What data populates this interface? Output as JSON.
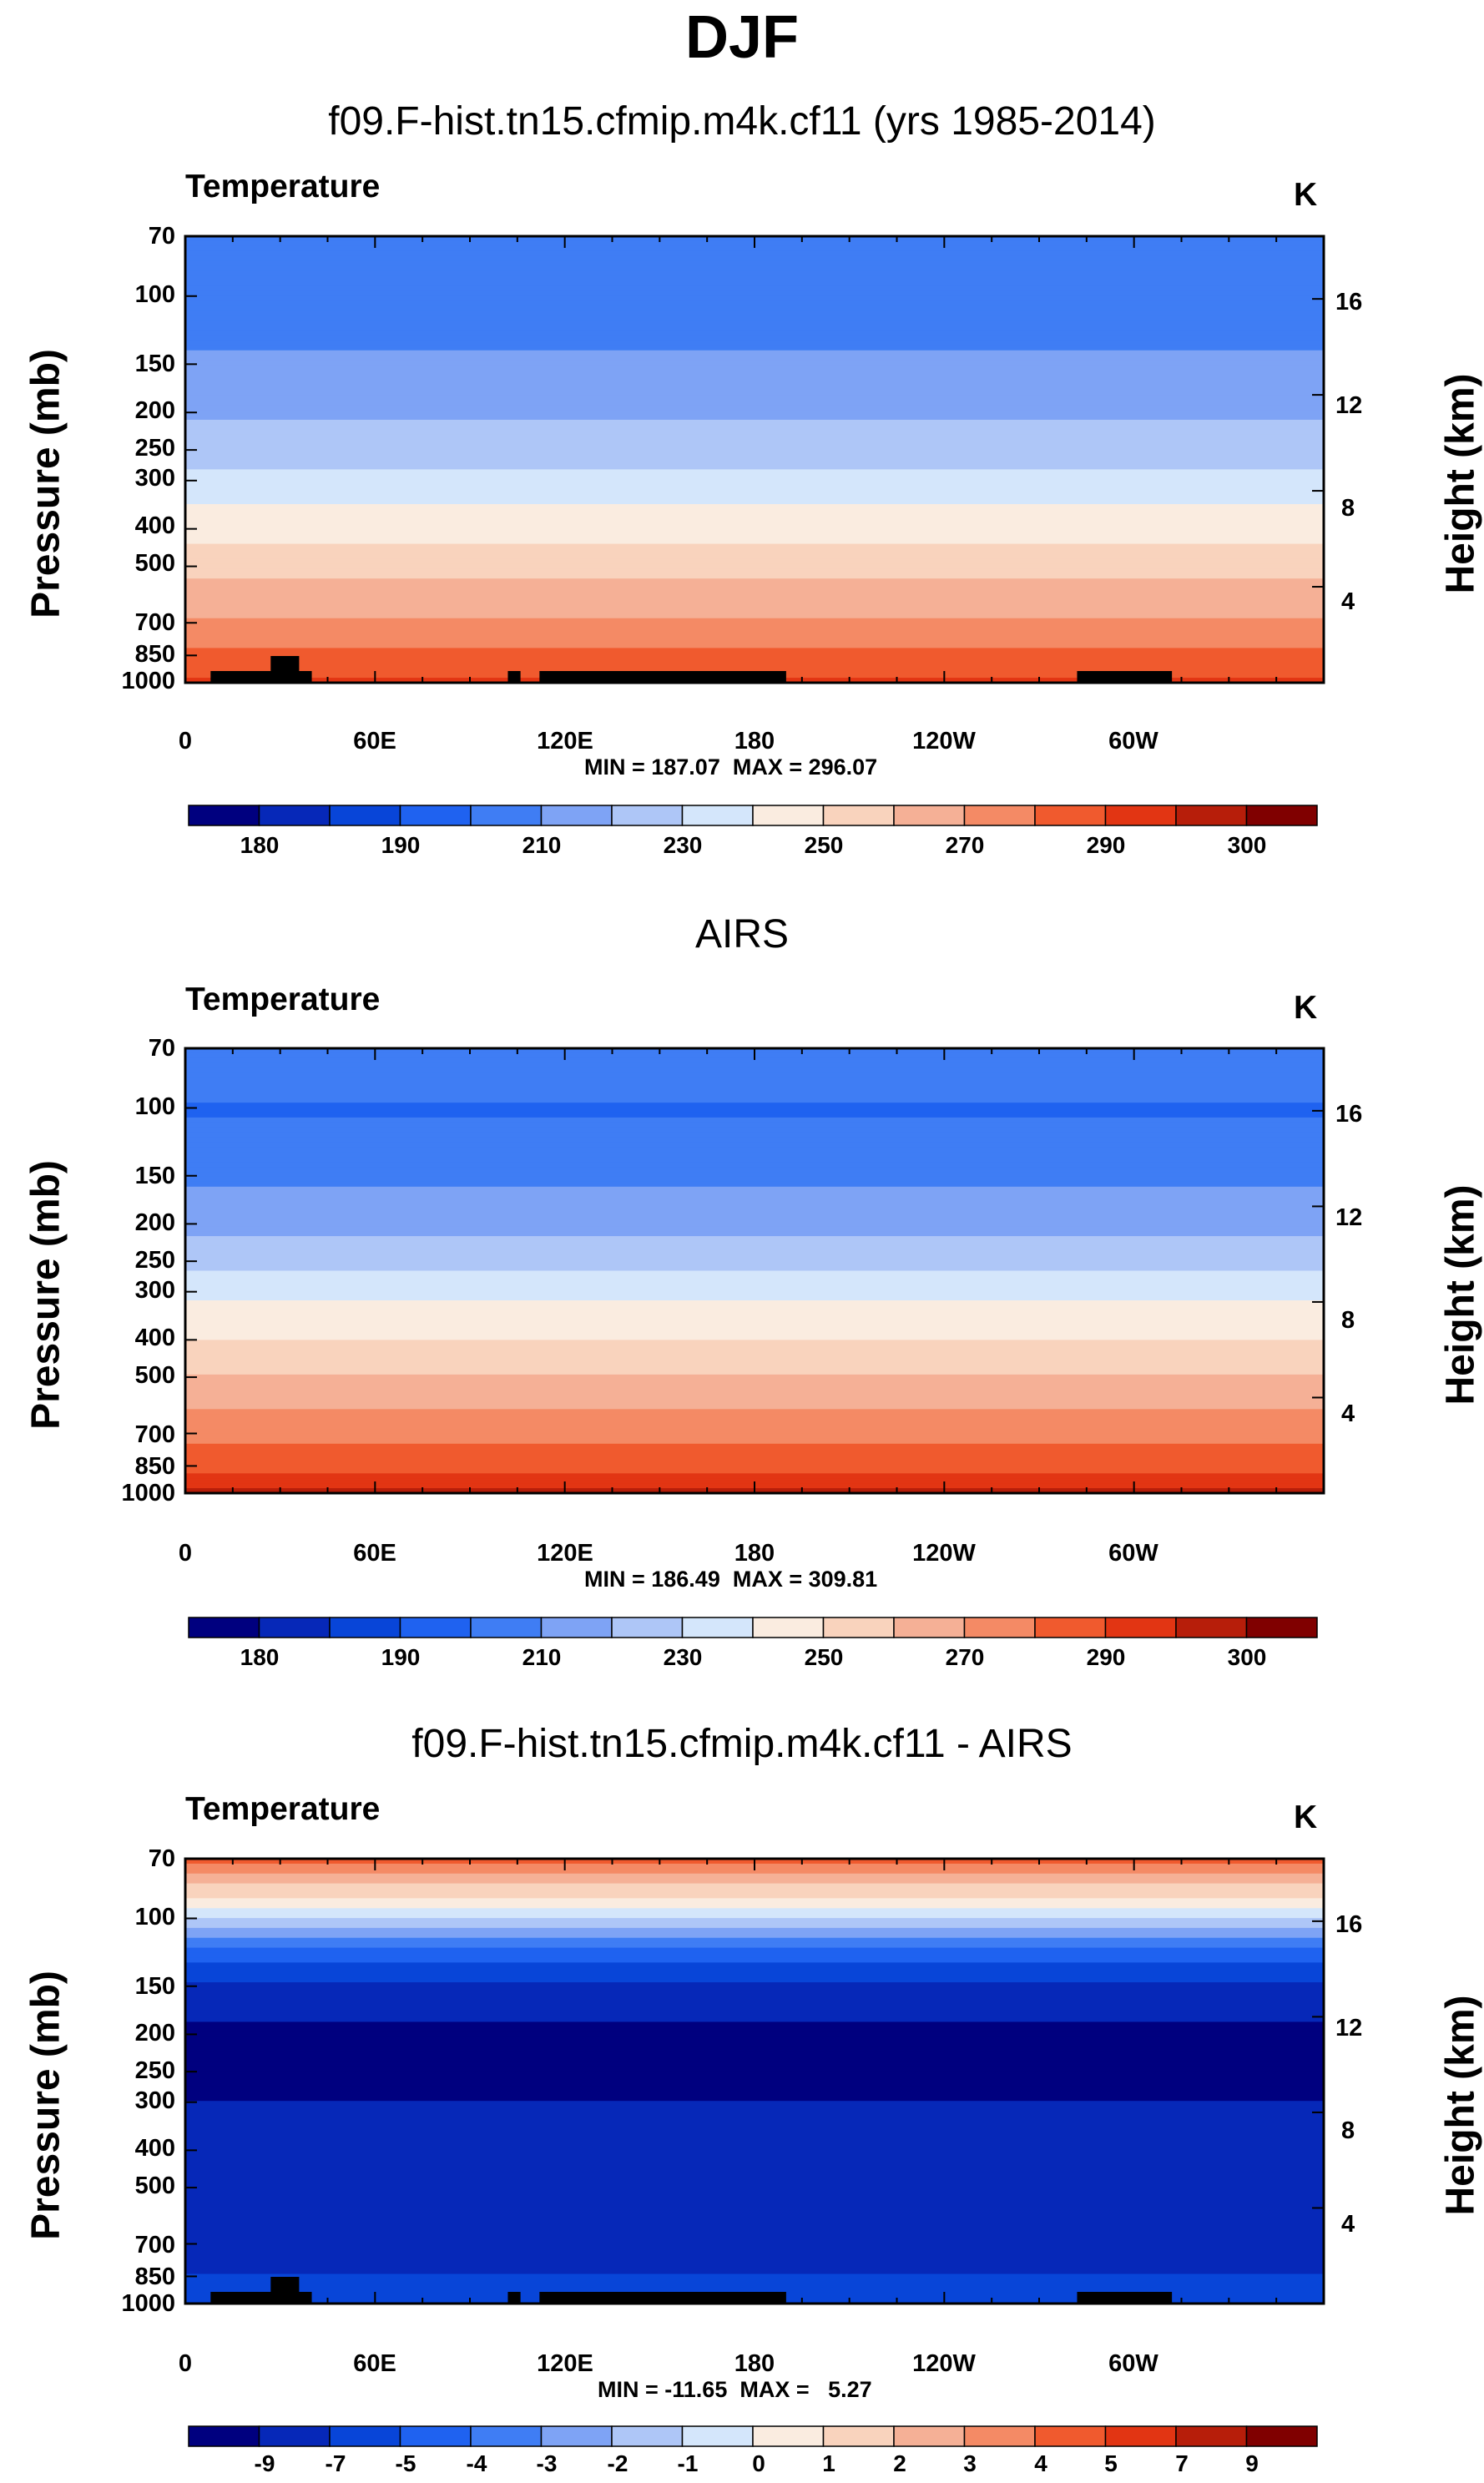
{
  "title": "DJF",
  "colors": {
    "abs_scale": [
      "#00007f",
      "#0628b8",
      "#0845d8",
      "#1f62f0",
      "#3f7df4",
      "#7ea3f5",
      "#aec6f7",
      "#d4e6fb",
      "#faece0",
      "#f9d3bd",
      "#f5b096",
      "#f48a65",
      "#f05a2e",
      "#e23513",
      "#b71e0a",
      "#800000"
    ],
    "diff_scale": [
      "#00007f",
      "#0628b8",
      "#0845d8",
      "#1f62f0",
      "#3f7df4",
      "#7ea3f5",
      "#aec6f7",
      "#d4e6fb",
      "#faece0",
      "#f9d3bd",
      "#f5b096",
      "#f48a65",
      "#f05a2e",
      "#e23513",
      "#b71e0a",
      "#800000"
    ],
    "topography": "#000000"
  },
  "panels": [
    {
      "title": "f09.F-hist.tn15.cfmip.m4k.cf11 (yrs 1985-2014)",
      "variable": "Temperature",
      "units": "K",
      "min_max": "MIN = 187.07  MAX = 296.07",
      "colorbar_labels": [
        "180",
        "190",
        "210",
        "230",
        "250",
        "270",
        "290",
        "300"
      ]
    },
    {
      "title": "AIRS",
      "variable": "Temperature",
      "units": "K",
      "min_max": "MIN = 186.49  MAX = 309.81",
      "colorbar_labels": [
        "180",
        "190",
        "210",
        "230",
        "250",
        "270",
        "290",
        "300"
      ]
    },
    {
      "title": "f09.F-hist.tn15.cfmip.m4k.cf11 - AIRS",
      "variable": "Temperature",
      "units": "K",
      "min_max": "MIN = -11.65  MAX =   5.27",
      "colorbar_labels": [
        "-9",
        "-7",
        "-5",
        "-4",
        "-3",
        "-2",
        "-1",
        "0",
        "1",
        "2",
        "3",
        "4",
        "5",
        "7",
        "9"
      ]
    }
  ],
  "axes": {
    "ylabel": "Pressure (mb)",
    "y2label": "Height (km)",
    "pressure_ticks": [
      "70",
      "100",
      "150",
      "200",
      "250",
      "300",
      "400",
      "500",
      "700",
      "850",
      "1000"
    ],
    "height_ticks": [
      "16",
      "12",
      "8",
      "4"
    ],
    "x_ticks": [
      "0",
      "60E",
      "120E",
      "180",
      "120W",
      "60W"
    ]
  },
  "chart_data": [
    {
      "type": "heatmap",
      "title": "f09.F-hist.tn15.cfmip.m4k.cf11 (yrs 1985-2014)",
      "variable": "Temperature",
      "units": "K",
      "x": "longitude",
      "xlim": [
        0,
        360
      ],
      "y": "pressure (mb)",
      "ylim": [
        1000,
        70
      ],
      "height_km_ticks": [
        16,
        12,
        8,
        4
      ],
      "min": 187.07,
      "max": 296.07,
      "contour_levels": [
        175,
        180,
        185,
        190,
        200,
        210,
        220,
        230,
        240,
        250,
        260,
        270,
        280,
        290,
        295,
        300
      ],
      "profile": [
        {
          "p": 70,
          "T": 208
        },
        {
          "p": 100,
          "T": 203
        },
        {
          "p": 150,
          "T": 212
        },
        {
          "p": 200,
          "T": 218
        },
        {
          "p": 250,
          "T": 226
        },
        {
          "p": 300,
          "T": 233
        },
        {
          "p": 400,
          "T": 246
        },
        {
          "p": 500,
          "T": 256
        },
        {
          "p": 700,
          "T": 272
        },
        {
          "p": 850,
          "T": 283
        },
        {
          "p": 1000,
          "T": 292
        }
      ]
    },
    {
      "type": "heatmap",
      "title": "AIRS",
      "variable": "Temperature",
      "units": "K",
      "x": "longitude",
      "xlim": [
        0,
        360
      ],
      "y": "pressure (mb)",
      "ylim": [
        1000,
        70
      ],
      "height_km_ticks": [
        16,
        12,
        8,
        4
      ],
      "min": 186.49,
      "max": 309.81,
      "contour_levels": [
        175,
        180,
        185,
        190,
        200,
        210,
        220,
        230,
        240,
        250,
        260,
        270,
        280,
        290,
        295,
        300
      ],
      "profile": [
        {
          "p": 70,
          "T": 207
        },
        {
          "p": 100,
          "T": 199
        },
        {
          "p": 150,
          "T": 208
        },
        {
          "p": 200,
          "T": 217
        },
        {
          "p": 250,
          "T": 227
        },
        {
          "p": 300,
          "T": 237
        },
        {
          "p": 400,
          "T": 250
        },
        {
          "p": 500,
          "T": 261
        },
        {
          "p": 700,
          "T": 277
        },
        {
          "p": 850,
          "T": 288
        },
        {
          "p": 1000,
          "T": 297
        }
      ]
    },
    {
      "type": "heatmap",
      "title": "f09.F-hist.tn15.cfmip.m4k.cf11 - AIRS",
      "variable": "Temperature",
      "units": "K",
      "x": "longitude",
      "xlim": [
        0,
        360
      ],
      "y": "pressure (mb)",
      "ylim": [
        1000,
        70
      ],
      "height_km_ticks": [
        16,
        12,
        8,
        4
      ],
      "min": -11.65,
      "max": 5.27,
      "contour_levels": [
        -11,
        -9,
        -7,
        -5,
        -4,
        -3,
        -2,
        -1,
        0,
        1,
        2,
        3,
        4,
        5,
        7,
        9
      ],
      "profile": [
        {
          "p": 70,
          "T": 4.5
        },
        {
          "p": 100,
          "T": -1
        },
        {
          "p": 150,
          "T": -7.5
        },
        {
          "p": 200,
          "T": -9.5
        },
        {
          "p": 250,
          "T": -9.5
        },
        {
          "p": 300,
          "T": -9
        },
        {
          "p": 400,
          "T": -8
        },
        {
          "p": 500,
          "T": -7.5
        },
        {
          "p": 700,
          "T": -8
        },
        {
          "p": 850,
          "T": -7
        },
        {
          "p": 1000,
          "T": -6
        }
      ]
    }
  ]
}
